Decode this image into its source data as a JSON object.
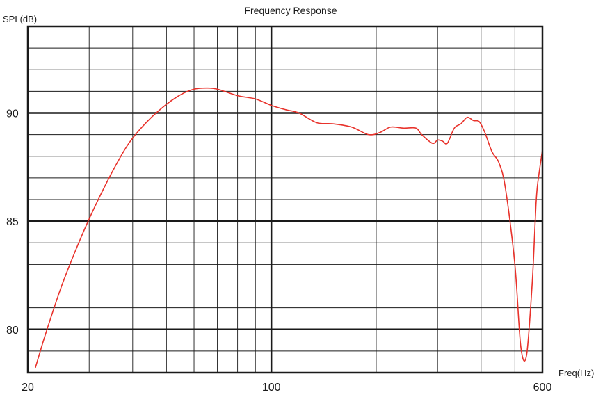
{
  "chart_data": {
    "type": "line",
    "title": "Frequency Response",
    "xlabel": "Freq(Hz)",
    "ylabel": "SPL(dB)",
    "x_scale": "log",
    "xlim": [
      20,
      600
    ],
    "ylim": [
      78,
      94
    ],
    "x_ticks": [
      {
        "value": 20,
        "label": "20"
      },
      {
        "value": 100,
        "label": "100"
      },
      {
        "value": 600,
        "label": "600"
      }
    ],
    "y_ticks": [
      {
        "value": 80,
        "label": "80"
      },
      {
        "value": 85,
        "label": "85"
      },
      {
        "value": 90,
        "label": "90"
      }
    ],
    "grid": true,
    "line_color": "#e8322b",
    "series": [
      {
        "x": [
          21,
          22.5,
          25,
          28,
          31,
          35,
          39,
          44,
          50,
          55,
          60,
          65,
          70,
          80,
          90,
          100,
          110,
          120,
          135,
          150,
          170,
          190,
          205,
          220,
          240,
          260,
          270,
          290,
          300,
          310,
          320,
          335,
          350,
          365,
          380,
          395,
          410,
          430,
          450,
          470,
          500,
          520,
          540,
          560,
          570,
          575,
          580,
          590,
          600
        ],
        "y": [
          78.2,
          79.8,
          82.0,
          84.0,
          85.6,
          87.3,
          88.6,
          89.6,
          90.4,
          90.85,
          91.1,
          91.15,
          91.1,
          90.8,
          90.65,
          90.35,
          90.15,
          90.0,
          89.55,
          89.5,
          89.35,
          89.0,
          89.1,
          89.35,
          89.3,
          89.3,
          89.0,
          88.6,
          88.75,
          88.7,
          88.6,
          89.3,
          89.5,
          89.8,
          89.65,
          89.6,
          89.1,
          88.2,
          87.7,
          86.5,
          83.0,
          79.2,
          78.8,
          82.0,
          84.5,
          85.8,
          86.6,
          87.5,
          88.3
        ]
      }
    ]
  }
}
